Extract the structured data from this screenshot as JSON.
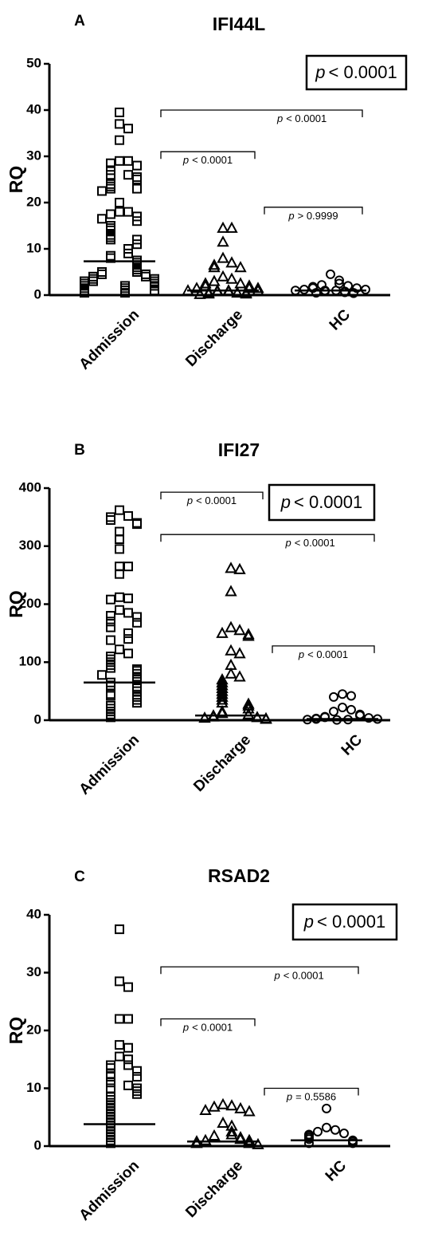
{
  "chart_data": [
    {
      "type": "dot",
      "panel": "A",
      "title": "IFI44L",
      "ylabel": "RQ",
      "categories": [
        "Admission",
        "Discharge",
        "HC"
      ],
      "markers": [
        "square",
        "triangle",
        "circle"
      ],
      "color": "#000000",
      "ylim": [
        0,
        50
      ],
      "yticks": [
        0,
        10,
        20,
        30,
        40,
        50
      ],
      "values": [
        [
          39.5,
          37,
          36,
          33.5,
          29,
          29,
          28.5,
          28,
          27,
          26,
          26,
          25.5,
          25,
          24,
          23.5,
          23,
          23,
          22.5,
          20,
          18,
          18,
          17.5,
          17,
          16.5,
          16,
          15,
          14.5,
          14,
          13,
          12.5,
          12,
          12,
          11,
          10,
          9,
          8.5,
          8,
          7.5,
          7,
          6.5,
          6,
          5.5,
          5,
          5,
          4.5,
          4.5,
          4,
          4,
          3.5,
          3.5,
          3,
          3,
          3,
          2.5,
          2.5,
          2,
          2,
          2,
          1.5,
          1.5,
          1,
          1,
          1,
          0.5,
          0.5
        ],
        [
          14.5,
          14.5,
          11.5,
          8,
          7,
          6.5,
          6,
          6,
          4,
          3.5,
          3,
          2.5,
          2.5,
          2,
          2,
          1.5,
          1.5,
          1.5,
          1,
          1,
          1,
          1,
          0.8,
          0.8,
          0.5,
          0.5,
          0.5,
          0.3,
          0.3,
          0.2
        ],
        [
          4.5,
          3.2,
          2.5,
          2.2,
          2,
          1.8,
          1.5,
          1.5,
          1.2,
          1.2,
          1,
          1,
          1,
          0.8,
          0.8,
          0.6,
          0.5,
          0.5,
          0.4
        ]
      ],
      "medians": [
        7.3,
        1,
        1
      ],
      "overall": {
        "p": "p",
        "text": "< 0.0001"
      },
      "comparisons": [
        {
          "between": [
            "Admission",
            "HC"
          ],
          "y": 40,
          "p": "p",
          "text": "< 0.0001"
        },
        {
          "between": [
            "Admission",
            "Discharge"
          ],
          "y": 31,
          "p": "p",
          "text": "< 0.0001"
        },
        {
          "between": [
            "Discharge",
            "HC"
          ],
          "y": 19,
          "p": "p",
          "text": "> 0.9999"
        }
      ]
    },
    {
      "type": "dot",
      "panel": "B",
      "title": "IFI27",
      "ylabel": "RQ",
      "categories": [
        "Admission",
        "Discharge",
        "HC"
      ],
      "markers": [
        "square",
        "triangle",
        "circle"
      ],
      "color": "#000000",
      "ylim": [
        0,
        400
      ],
      "yticks": [
        0,
        100,
        200,
        300,
        400
      ],
      "values": [
        [
          362,
          352,
          350,
          345,
          340,
          338,
          325,
          312,
          295,
          265,
          265,
          252,
          212,
          210,
          208,
          190,
          185,
          180,
          178,
          170,
          168,
          160,
          150,
          140,
          138,
          122,
          115,
          110,
          105,
          100,
          95,
          90,
          88,
          85,
          80,
          78,
          75,
          70,
          65,
          60,
          58,
          55,
          50,
          45,
          42,
          40,
          35,
          30,
          25,
          20,
          15,
          10,
          5
        ],
        [
          262,
          260,
          222,
          160,
          155,
          150,
          148,
          145,
          120,
          115,
          95,
          80,
          75,
          70,
          65,
          60,
          55,
          50,
          45,
          40,
          35,
          30,
          28,
          25,
          20,
          15,
          12,
          10,
          8,
          6,
          5,
          4,
          3,
          2
        ],
        [
          45,
          42,
          40,
          22,
          18,
          15,
          10,
          8,
          6,
          5,
          4,
          3,
          2,
          2,
          1,
          1,
          0.5
        ]
      ],
      "medians": [
        65,
        8,
        2
      ],
      "overall": {
        "p": "p",
        "text": "< 0.0001"
      },
      "comparisons": [
        {
          "between": [
            "Admission",
            "Discharge"
          ],
          "y": 393,
          "p": "p",
          "text": "< 0.0001"
        },
        {
          "between": [
            "Admission",
            "HC"
          ],
          "y": 320,
          "p": "p",
          "text": "< 0.0001"
        },
        {
          "between": [
            "Discharge",
            "HC"
          ],
          "y": 128,
          "p": "p",
          "text": "< 0.0001"
        }
      ]
    },
    {
      "type": "dot",
      "panel": "C",
      "title": "RSAD2",
      "ylabel": "RQ",
      "categories": [
        "Admission",
        "Discharge",
        "HC"
      ],
      "markers": [
        "square",
        "triangle",
        "circle"
      ],
      "color": "#000000",
      "ylim": [
        0,
        40
      ],
      "yticks": [
        0,
        10,
        20,
        30,
        40
      ],
      "values": [
        [
          37.5,
          28.5,
          27.5,
          22,
          22,
          17.5,
          17,
          15.5,
          15,
          14,
          14,
          13.5,
          13,
          12.5,
          12,
          12,
          11,
          10.5,
          10,
          10,
          9.5,
          9,
          8.5,
          8,
          7.5,
          7,
          6.5,
          6,
          5.5,
          5,
          4.5,
          4,
          3.5,
          3,
          2.5,
          2,
          1.5,
          1,
          0.5
        ],
        [
          7.2,
          7,
          6.8,
          6.5,
          6.2,
          6,
          4,
          3.5,
          2.5,
          2,
          1.8,
          1.5,
          1.2,
          1,
          1,
          0.8,
          0.5,
          0.5,
          0.3
        ],
        [
          6.5,
          3.2,
          2.8,
          2.5,
          2.2,
          2,
          1.8,
          1.5,
          1.2,
          1,
          0.8,
          0.5,
          0.5
        ]
      ],
      "medians": [
        3.8,
        0.8,
        1
      ],
      "overall": {
        "p": "p",
        "text": "< 0.0001"
      },
      "comparisons": [
        {
          "between": [
            "Admission",
            "HC"
          ],
          "y": 31,
          "p": "p",
          "text": "< 0.0001"
        },
        {
          "between": [
            "Admission",
            "Discharge"
          ],
          "y": 22,
          "p": "p",
          "text": "< 0.0001"
        },
        {
          "between": [
            "Discharge",
            "HC"
          ],
          "y": 10,
          "p": "p",
          "text": "= 0.5586"
        }
      ]
    }
  ]
}
